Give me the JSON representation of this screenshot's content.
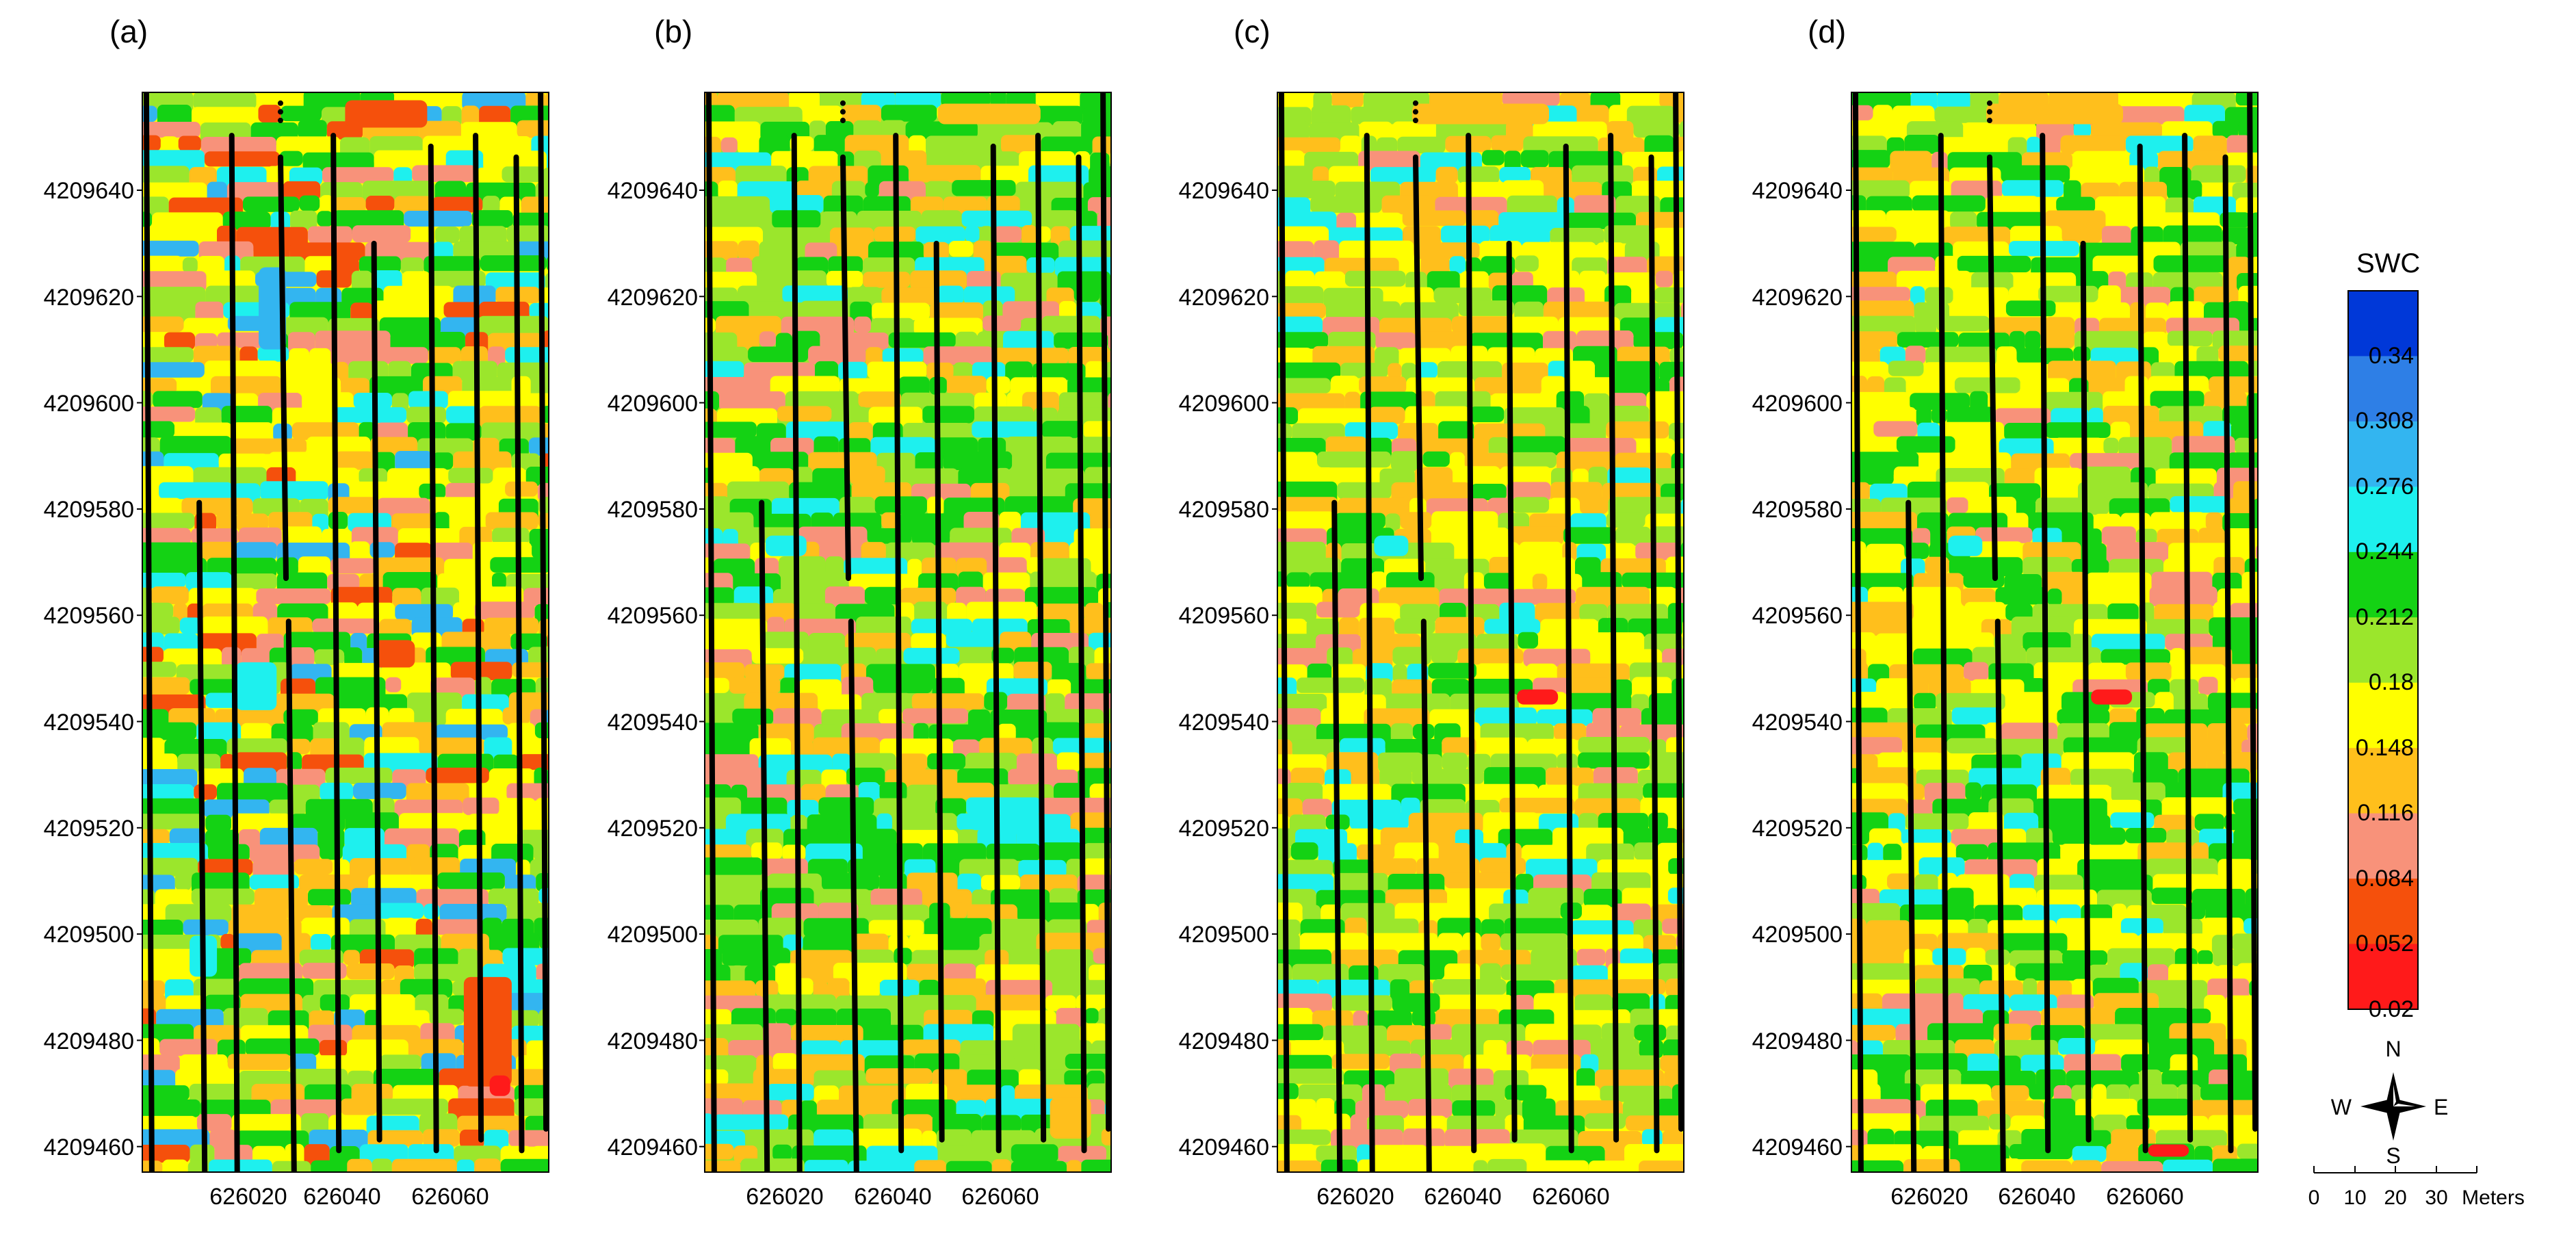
{
  "panels": [
    {
      "label": "(a)",
      "variant": "a"
    },
    {
      "label": "(b)",
      "variant": "b"
    },
    {
      "label": "(c)",
      "variant": "c"
    },
    {
      "label": "(d)",
      "variant": "d"
    }
  ],
  "axes": {
    "y_ticks": [
      "4209640",
      "4209620",
      "4209600",
      "4209580",
      "4209560",
      "4209540",
      "4209520",
      "4209500",
      "4209480",
      "4209460"
    ],
    "x_ticks": [
      "626020",
      "626040",
      "626060"
    ]
  },
  "legend": {
    "title": "SWC",
    "values": [
      "0.34",
      "0.308",
      "0.276",
      "0.244",
      "0.212",
      "0.18",
      "0.148",
      "0.116",
      "0.084",
      "0.052",
      "0.02"
    ],
    "colors": [
      "#0038d8",
      "#2e7fe6",
      "#33b5f0",
      "#1ef0ee",
      "#14d214",
      "#9be62c",
      "#ffff00",
      "#ffbf1c",
      "#f8927a",
      "#f5500c",
      "#ff1a1a"
    ]
  },
  "compass": {
    "n": "N",
    "s": "S",
    "e": "E",
    "w": "W"
  },
  "scale_bar": {
    "labels": [
      "0",
      "10",
      "20",
      "30"
    ],
    "unit": "Meters"
  }
}
